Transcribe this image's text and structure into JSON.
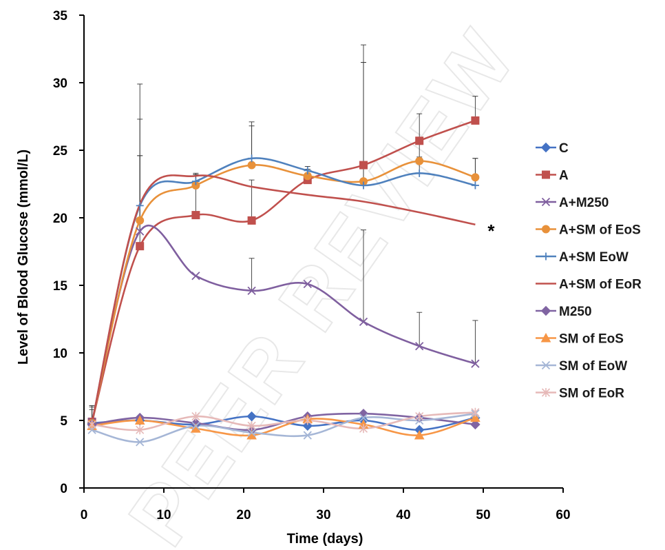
{
  "watermark": "PEER REVIEW",
  "chart_data": {
    "type": "line",
    "xlabel": "Time (days)",
    "ylabel": "Level of Blood Glucose (mmol/L)",
    "xlim": [
      0,
      60
    ],
    "ylim": [
      0,
      35
    ],
    "xticks": [
      0,
      10,
      20,
      30,
      40,
      50,
      60
    ],
    "yticks": [
      0,
      5,
      10,
      15,
      20,
      25,
      30,
      35
    ],
    "grid": false,
    "legend_position": "right",
    "annotation": "*",
    "x": [
      1,
      7,
      14,
      21,
      28,
      35,
      42,
      49
    ],
    "series": [
      {
        "name": "C",
        "color": "#4472C4",
        "marker": "diamond",
        "values": [
          4.8,
          5.0,
          4.7,
          5.3,
          4.6,
          5.0,
          4.3,
          5.2
        ]
      },
      {
        "name": "A",
        "color": "#C0504D",
        "marker": "square",
        "values": [
          4.9,
          17.9,
          20.2,
          19.8,
          22.8,
          23.9,
          25.7,
          27.2
        ],
        "error_up": [
          1.2,
          9.4,
          3.0,
          3.0,
          0.8,
          7.6,
          2.0,
          1.8
        ]
      },
      {
        "name": "A+M250",
        "color": "#7F5F9F",
        "marker": "x",
        "values": [
          4.9,
          19.0,
          15.7,
          14.6,
          15.1,
          12.3,
          10.5,
          9.2
        ],
        "error_up": [
          1.1,
          5.6,
          0,
          2.4,
          0,
          6.8,
          2.5,
          3.2
        ]
      },
      {
        "name": "A+SM of  EoS",
        "color": "#E8913A",
        "marker": "circle",
        "values": [
          4.8,
          19.8,
          22.4,
          23.9,
          23.1,
          22.7,
          24.2,
          23.0
        ],
        "error_up": [
          1.3,
          10.1,
          0.9,
          3.2,
          0.4,
          10.1,
          1.3,
          1.4
        ]
      },
      {
        "name": "A+SM EoW",
        "color": "#4F81BD",
        "marker": "plus",
        "values": [
          4.8,
          20.9,
          22.7,
          24.4,
          23.5,
          22.4,
          23.3,
          22.4
        ],
        "error_up": [
          1.0,
          3.7,
          0.5,
          2.4,
          0.3,
          9.1,
          1.2,
          2.0
        ]
      },
      {
        "name": "A+SM of EoR",
        "color": "#C0504D",
        "marker": "none",
        "values": [
          4.8,
          21.0,
          23.1,
          22.3,
          21.7,
          21.2,
          20.4,
          19.5
        ]
      },
      {
        "name": "M250",
        "color": "#8064A2",
        "marker": "diamond",
        "values": [
          4.7,
          5.2,
          4.8,
          4.3,
          5.3,
          5.5,
          5.2,
          4.7
        ]
      },
      {
        "name": "SM of EoS",
        "color": "#F79646",
        "marker": "triangle",
        "values": [
          4.6,
          5.0,
          4.4,
          3.9,
          5.1,
          4.7,
          3.9,
          5.2
        ]
      },
      {
        "name": "SM of EoW",
        "color": "#A5B6D6",
        "marker": "x",
        "values": [
          4.3,
          3.4,
          4.6,
          4.1,
          3.9,
          5.2,
          5.0,
          5.5
        ]
      },
      {
        "name": "SM of EoR",
        "color": "#E6B9B8",
        "marker": "star",
        "values": [
          4.7,
          4.3,
          5.3,
          4.6,
          5.0,
          4.4,
          5.3,
          5.6
        ]
      }
    ]
  }
}
